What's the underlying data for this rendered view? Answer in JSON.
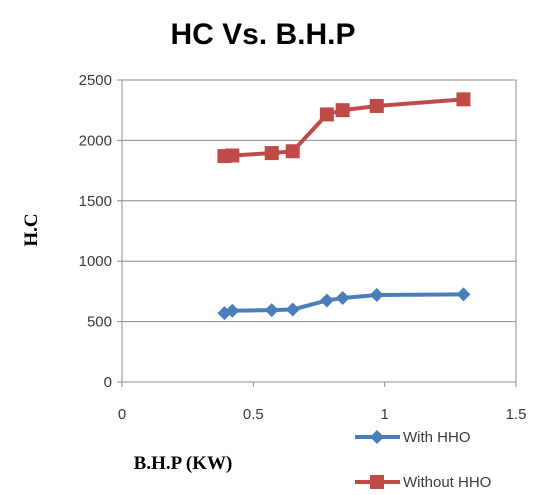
{
  "chart_data": {
    "type": "line",
    "title": "HC Vs. B.H.P",
    "xlabel": "B.H.P (KW)",
    "ylabel": "H.C",
    "xlim": [
      0,
      1.5
    ],
    "ylim": [
      0,
      2500
    ],
    "xticks": [
      0,
      0.5,
      1,
      1.5
    ],
    "xtick_labels": [
      "0",
      "0.5",
      "1",
      "1.5"
    ],
    "yticks": [
      0,
      500,
      1000,
      1500,
      2000,
      2500
    ],
    "ytick_labels": [
      "0",
      "500",
      "1000",
      "1500",
      "2000",
      "2500"
    ],
    "grid": "horizontal",
    "legend_position": "bottom-right",
    "series": [
      {
        "name": "With HHO",
        "color": "#4a7ebb",
        "marker": "diamond",
        "x": [
          0.39,
          0.42,
          0.57,
          0.65,
          0.78,
          0.84,
          0.97,
          1.3
        ],
        "y": [
          570,
          590,
          595,
          600,
          675,
          695,
          720,
          725
        ]
      },
      {
        "name": "Without HHO",
        "color": "#be4b48",
        "marker": "square",
        "x": [
          0.39,
          0.42,
          0.57,
          0.65,
          0.78,
          0.84,
          0.97,
          1.3
        ],
        "y": [
          1870,
          1875,
          1895,
          1910,
          2215,
          2250,
          2285,
          2340
        ]
      }
    ]
  }
}
